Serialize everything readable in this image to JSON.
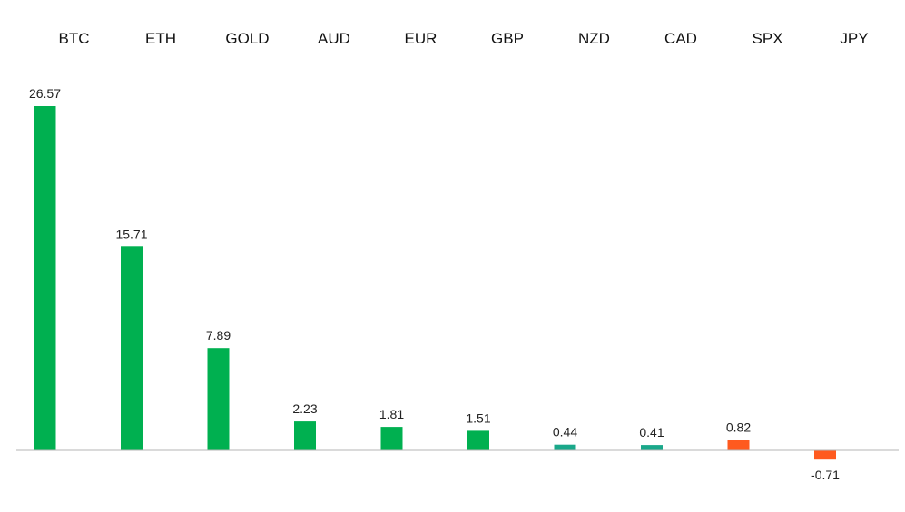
{
  "chart_data": {
    "type": "bar",
    "categories": [
      "BTC",
      "ETH",
      "GOLD",
      "AUD",
      "EUR",
      "GBP",
      "NZD",
      "CAD",
      "SPX",
      "JPY"
    ],
    "values": [
      26.57,
      15.71,
      7.89,
      2.23,
      1.81,
      1.51,
      0.44,
      0.41,
      0.82,
      -0.71
    ],
    "value_labels": [
      "26.57",
      "15.71",
      "7.89",
      "2.23",
      "1.81",
      "1.51",
      "0.44",
      "0.41",
      "0.82",
      "-0.71"
    ],
    "bar_colors": [
      "#00b050",
      "#00b050",
      "#00b050",
      "#00b050",
      "#00b050",
      "#00b050",
      "#1aa88a",
      "#1aa88a",
      "#ff5a1f",
      "#ff5a1f"
    ],
    "axis_color": "#b4b4b4",
    "category_axis_position": "top",
    "ylim": [
      -0.71,
      26.57
    ],
    "grid": false,
    "legend": "none",
    "title": "",
    "xlabel": "",
    "ylabel": ""
  }
}
